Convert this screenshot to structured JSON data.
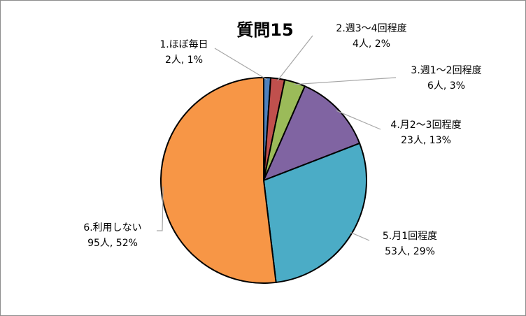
{
  "chart_data": {
    "type": "pie",
    "title": "質問15",
    "start_angle_deg": 0,
    "direction": "clockwise",
    "legend": "none",
    "slices": [
      {
        "name": "1.ほぼ毎日",
        "label": "1.ほぼ毎日",
        "value_text": "2人, 1%",
        "count": 2,
        "percent": 1,
        "color": "#4f81bd"
      },
      {
        "name": "2.週3～4回程度",
        "label": "2.週3～4回程度",
        "value_text": "4人, 2%",
        "count": 4,
        "percent": 2,
        "color": "#c0504d"
      },
      {
        "name": "3.週1～2回程度",
        "label": "3.週1～2回程度",
        "value_text": "6人, 3%",
        "count": 6,
        "percent": 3,
        "color": "#9bbb59"
      },
      {
        "name": "4.月2～3回程度",
        "label": "4.月2～3回程度",
        "value_text": "23人, 13%",
        "count": 23,
        "percent": 13,
        "color": "#8064a2"
      },
      {
        "name": "5.月1回程度",
        "label": "5.月1回程度",
        "value_text": "53人, 29%",
        "count": 53,
        "percent": 29,
        "color": "#4bacc6"
      },
      {
        "name": "6.利用しない",
        "label": "6.利用しない",
        "value_text": "95人, 52%",
        "count": 95,
        "percent": 52,
        "color": "#f79646"
      }
    ]
  }
}
